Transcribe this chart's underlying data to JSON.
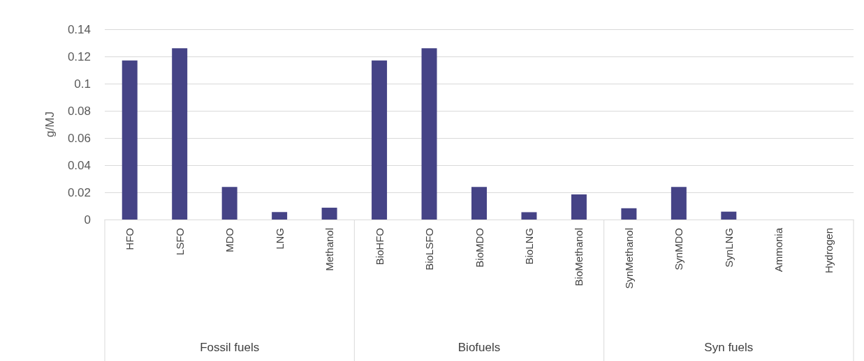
{
  "chart_data": {
    "type": "bar",
    "ylabel": "g/MJ",
    "categories": [
      "HFO",
      "LSFO",
      "MDO",
      "LNG",
      "Methanol",
      "BioHFO",
      "BioLSFO",
      "BioMDO",
      "BioLNG",
      "BioMethanol",
      "SynMethanol",
      "SynMDO",
      "SynLNG",
      "Ammonia",
      "Hydrogen"
    ],
    "values": [
      0.117,
      0.126,
      0.024,
      0.0055,
      0.0087,
      0.117,
      0.126,
      0.024,
      0.0054,
      0.0185,
      0.0083,
      0.024,
      0.0058,
      0,
      0
    ],
    "color": "#454386",
    "ylim": [
      0,
      0.14
    ],
    "yticks": [
      0,
      0.02,
      0.04,
      0.06,
      0.08,
      0.1,
      0.12,
      0.14
    ],
    "grid": true,
    "annotations": [
      "Fossil fuels",
      "Biofuels",
      "Syn fuels"
    ]
  }
}
